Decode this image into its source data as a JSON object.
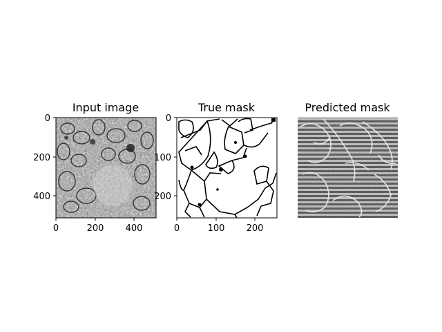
{
  "figure": {
    "panels": [
      {
        "id": "input",
        "title": "Input image",
        "xticks": [
          "0",
          "200",
          "400"
        ],
        "yticks": [
          "0",
          "200",
          "400"
        ],
        "xlim": [
          0,
          512
        ],
        "ylim": [
          512,
          0
        ],
        "image_kind": "grayscale-micrograph"
      },
      {
        "id": "true",
        "title": "True mask",
        "xticks": [
          "0",
          "100",
          "200"
        ],
        "yticks": [
          "0",
          "100",
          "200"
        ],
        "xlim": [
          0,
          256
        ],
        "ylim": [
          256,
          0
        ],
        "image_kind": "binary-cell-boundary-mask"
      },
      {
        "id": "pred",
        "title": "Predicted mask",
        "xticks": [],
        "yticks": [],
        "image_kind": "striped-noisy-mask"
      }
    ]
  }
}
